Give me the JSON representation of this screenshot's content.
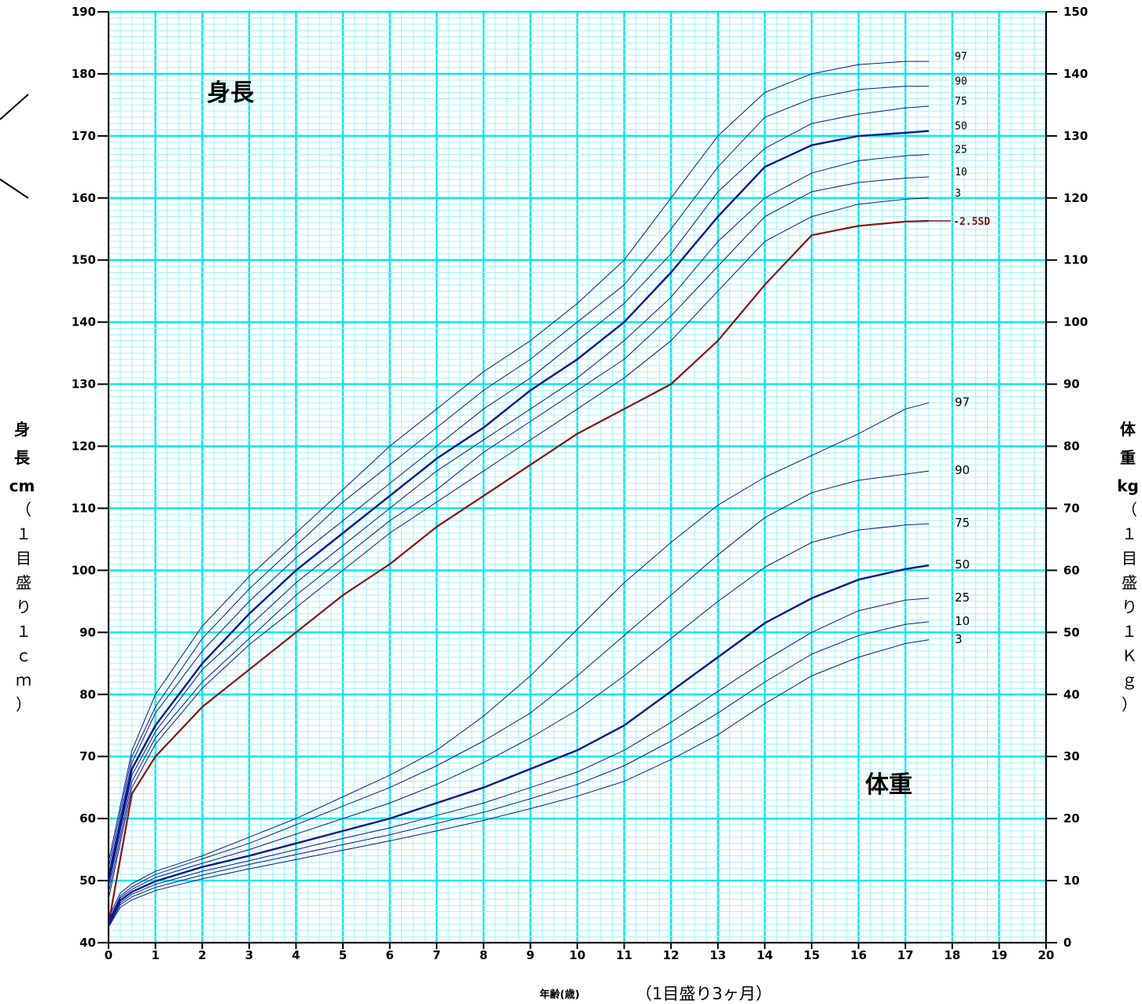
{
  "chart_data": {
    "type": "line",
    "x_ticks": [
      "0",
      "1",
      "2",
      "3",
      "4",
      "5",
      "6",
      "7",
      "8",
      "9",
      "10",
      "11",
      "12",
      "13",
      "14",
      "15",
      "16",
      "17",
      "18",
      "19",
      "20"
    ],
    "xlim": [
      0,
      20
    ],
    "height_ticks": [
      "40",
      "50",
      "60",
      "70",
      "80",
      "90",
      "100",
      "110",
      "120",
      "130",
      "140",
      "150",
      "160",
      "170",
      "180",
      "190"
    ],
    "height_lim": [
      40,
      190
    ],
    "weight_ticks": [
      "0",
      "10",
      "20",
      "30",
      "40",
      "50",
      "60",
      "70",
      "80",
      "90",
      "100",
      "110",
      "120",
      "130",
      "140",
      "150"
    ],
    "weight_lim": [
      0,
      150
    ],
    "grid": true,
    "x_minor_step": 0.25,
    "height_minor_step": 1,
    "colors": {
      "grid_major": "#00e8f0",
      "grid_minor": "#9ff4f8",
      "curve": "#0a1a8a",
      "curve_bold": "#0a1a8a",
      "sd_curve": "#8b1010"
    },
    "titles": {
      "height": "身長",
      "weight": "体重"
    },
    "left_axis_label": {
      "main": [
        "身",
        "長",
        "cm"
      ],
      "paren": [
        "（",
        "１",
        "目",
        "盛",
        "り",
        "１",
        "ｃ",
        "ｍ",
        "）"
      ]
    },
    "right_axis_label": {
      "main": [
        "体",
        "重",
        "kg"
      ],
      "paren": [
        "（",
        "１",
        "目",
        "盛",
        "り",
        "１",
        "Ｋ",
        "ｇ",
        "）"
      ]
    },
    "x_caption_main": "年齢(歳)",
    "x_caption_note": "（1目盛り3ヶ月）",
    "height_series": [
      {
        "name": "97",
        "bold": false,
        "x": [
          0,
          0.5,
          1,
          2,
          3,
          4,
          5,
          6,
          7,
          8,
          9,
          10,
          11,
          12,
          13,
          14,
          15,
          16,
          17,
          17.5
        ],
        "y": [
          53,
          71,
          80,
          91,
          99,
          106,
          113,
          120,
          126,
          132,
          137,
          143,
          150,
          160,
          170,
          177,
          180,
          181.5,
          182,
          182
        ]
      },
      {
        "name": "90",
        "bold": false,
        "x": [
          0,
          0.5,
          1,
          2,
          3,
          4,
          5,
          6,
          7,
          8,
          9,
          10,
          11,
          12,
          13,
          14,
          15,
          16,
          17,
          17.5
        ],
        "y": [
          52,
          70,
          78,
          89,
          97,
          104,
          111,
          117,
          123,
          129,
          134,
          140,
          146,
          155,
          165,
          173,
          176,
          177.5,
          178,
          178
        ]
      },
      {
        "name": "75",
        "bold": false,
        "x": [
          0,
          0.5,
          1,
          2,
          3,
          4,
          5,
          6,
          7,
          8,
          9,
          10,
          11,
          12,
          13,
          14,
          15,
          16,
          17,
          17.5
        ],
        "y": [
          51,
          69,
          77,
          87,
          95,
          102,
          108,
          114,
          120,
          126,
          131,
          137,
          143,
          151,
          161,
          168,
          172,
          173.5,
          174.5,
          174.8
        ]
      },
      {
        "name": "50",
        "bold": true,
        "x": [
          0,
          0.5,
          1,
          2,
          3,
          4,
          5,
          6,
          7,
          8,
          9,
          10,
          11,
          12,
          13,
          14,
          15,
          16,
          17,
          17.5
        ],
        "y": [
          50,
          68,
          75,
          85,
          93,
          100,
          106,
          112,
          118,
          123,
          129,
          134,
          140,
          148,
          157,
          165,
          168.5,
          170,
          170.5,
          170.8
        ]
      },
      {
        "name": "25",
        "bold": false,
        "x": [
          0,
          0.5,
          1,
          2,
          3,
          4,
          5,
          6,
          7,
          8,
          9,
          10,
          11,
          12,
          13,
          14,
          15,
          16,
          17,
          17.5
        ],
        "y": [
          49,
          67,
          74,
          84,
          91,
          98,
          104,
          110,
          116,
          121,
          126,
          131,
          137,
          144,
          153,
          160,
          164,
          166,
          166.8,
          167
        ]
      },
      {
        "name": "10",
        "bold": false,
        "x": [
          0,
          0.5,
          1,
          2,
          3,
          4,
          5,
          6,
          7,
          8,
          9,
          10,
          11,
          12,
          13,
          14,
          15,
          16,
          17,
          17.5
        ],
        "y": [
          48,
          66,
          73,
          82,
          89,
          96,
          102,
          108,
          113,
          119,
          124,
          129,
          134,
          141,
          149,
          157,
          161,
          162.5,
          163.2,
          163.4
        ]
      },
      {
        "name": "3",
        "bold": false,
        "x": [
          0,
          0.5,
          1,
          2,
          3,
          4,
          5,
          6,
          7,
          8,
          9,
          10,
          11,
          12,
          13,
          14,
          15,
          16,
          17,
          17.5
        ],
        "y": [
          47,
          65,
          72,
          81,
          88,
          94,
          100,
          106,
          111,
          116,
          121,
          126,
          131,
          137,
          145,
          153,
          157,
          159,
          159.8,
          160
        ]
      }
    ],
    "sd_series": {
      "name": "-2.5SD",
      "x": [
        0,
        0.5,
        1,
        2,
        3,
        4,
        5,
        6,
        7,
        8,
        9,
        10,
        11,
        12,
        13,
        14,
        15,
        16,
        17,
        17.5
      ],
      "y": [
        43,
        64,
        70,
        78,
        84,
        90,
        96,
        101,
        107,
        112,
        117,
        122,
        126,
        130,
        137,
        146,
        154,
        155.5,
        156.2,
        156.3
      ]
    },
    "weight_series": [
      {
        "name": "97",
        "bold": false,
        "x": [
          0,
          0.25,
          0.5,
          1,
          2,
          3,
          4,
          5,
          6,
          7,
          8,
          9,
          10,
          11,
          12,
          13,
          14,
          15,
          16,
          17,
          17.5
        ],
        "y": [
          4,
          8,
          9.5,
          11.5,
          14,
          17,
          20,
          23.5,
          27,
          31,
          36.5,
          43,
          50.5,
          58,
          64.5,
          70.5,
          75,
          78.5,
          82,
          86,
          87
        ]
      },
      {
        "name": "90",
        "bold": false,
        "x": [
          0,
          0.25,
          0.5,
          1,
          2,
          3,
          4,
          5,
          6,
          7,
          8,
          9,
          10,
          11,
          12,
          13,
          14,
          15,
          16,
          17,
          17.5
        ],
        "y": [
          3.5,
          7.5,
          9,
          11,
          13.5,
          16,
          19,
          22,
          25,
          28.5,
          32.5,
          37,
          43,
          49.5,
          56,
          62.5,
          68.5,
          72.5,
          74.5,
          75.5,
          76
        ]
      },
      {
        "name": "75",
        "bold": false,
        "x": [
          0,
          0.25,
          0.5,
          1,
          2,
          3,
          4,
          5,
          6,
          7,
          8,
          9,
          10,
          11,
          12,
          13,
          14,
          15,
          16,
          17,
          17.5
        ],
        "y": [
          3.3,
          7.2,
          8.6,
          10.5,
          12.8,
          15,
          17.5,
          20,
          22.5,
          25.5,
          29,
          33,
          37.5,
          43,
          49,
          55,
          60.5,
          64.5,
          66.5,
          67.3,
          67.5
        ]
      },
      {
        "name": "50",
        "bold": true,
        "x": [
          0,
          0.25,
          0.5,
          1,
          2,
          3,
          4,
          5,
          6,
          7,
          8,
          9,
          10,
          11,
          12,
          13,
          14,
          15,
          16,
          17,
          17.5
        ],
        "y": [
          3.1,
          6.8,
          8.2,
          9.9,
          12.2,
          14,
          16,
          18,
          20,
          22.5,
          25,
          28,
          31,
          35,
          40.5,
          46,
          51.5,
          55.5,
          58.5,
          60.2,
          60.8
        ]
      },
      {
        "name": "25",
        "bold": false,
        "x": [
          0,
          0.25,
          0.5,
          1,
          2,
          3,
          4,
          5,
          6,
          7,
          8,
          9,
          10,
          11,
          12,
          13,
          14,
          15,
          16,
          17,
          17.5
        ],
        "y": [
          2.9,
          6.4,
          7.8,
          9.4,
          11.5,
          13.2,
          15,
          16.8,
          18.5,
          20.5,
          22.5,
          25,
          27.5,
          31,
          35.5,
          40.5,
          45.5,
          50,
          53.5,
          55.2,
          55.5
        ]
      },
      {
        "name": "10",
        "bold": false,
        "x": [
          0,
          0.25,
          0.5,
          1,
          2,
          3,
          4,
          5,
          6,
          7,
          8,
          9,
          10,
          11,
          12,
          13,
          14,
          15,
          16,
          17,
          17.5
        ],
        "y": [
          2.7,
          6.1,
          7.4,
          8.9,
          10.9,
          12.6,
          14.2,
          15.8,
          17.4,
          19.2,
          21,
          23.2,
          25.5,
          28.5,
          32.5,
          37,
          42,
          46.5,
          49.5,
          51.3,
          51.7
        ]
      },
      {
        "name": "3",
        "bold": false,
        "x": [
          0,
          0.25,
          0.5,
          1,
          2,
          3,
          4,
          5,
          6,
          7,
          8,
          9,
          10,
          11,
          12,
          13,
          14,
          15,
          16,
          17,
          17.5
        ],
        "y": [
          2.5,
          5.7,
          6.9,
          8.4,
          10.3,
          11.9,
          13.4,
          14.9,
          16.4,
          18,
          19.7,
          21.6,
          23.6,
          26,
          29.5,
          33.5,
          38.5,
          43,
          46,
          48.2,
          48.8
        ]
      }
    ]
  }
}
